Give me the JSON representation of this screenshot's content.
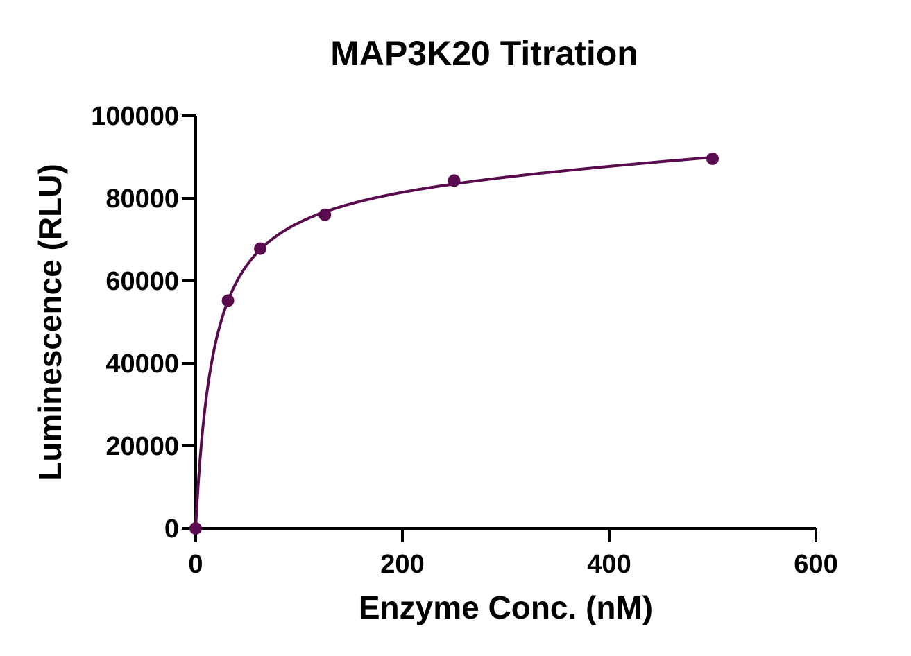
{
  "chart_data": {
    "type": "scatter",
    "title": "MAP3K20 Titration",
    "xlabel": "Enzyme Conc. (nM)",
    "ylabel": "Luminescence (RLU)",
    "xlim": [
      0,
      600
    ],
    "ylim": [
      0,
      100000
    ],
    "x_ticks": [
      0,
      200,
      400,
      600
    ],
    "y_ticks": [
      0,
      20000,
      40000,
      60000,
      80000,
      100000
    ],
    "x_tick_labels": [
      "0",
      "200",
      "400",
      "600"
    ],
    "y_tick_labels": [
      "0",
      "20000",
      "40000",
      "60000",
      "80000",
      "100000"
    ],
    "grid": false,
    "legend": "none",
    "series": [
      {
        "x": [
          0,
          31.25,
          62.5,
          125,
          250,
          500
        ],
        "y": [
          0,
          55200,
          67800,
          76000,
          84300,
          89600
        ],
        "fit": "hyperbolic",
        "color": "#5a0a4e"
      }
    ]
  }
}
